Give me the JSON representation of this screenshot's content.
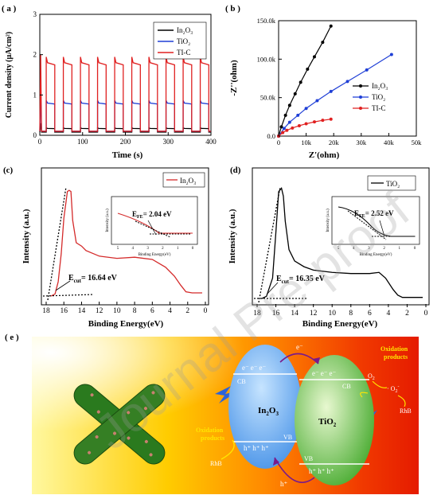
{
  "panels": {
    "a": {
      "label": "( a )",
      "xlabel": "Time (s)",
      "ylabel": "Current density (μA/cm²)",
      "xticks": [
        "0",
        "100",
        "200",
        "300",
        "400"
      ],
      "yticks": [
        "0",
        "1",
        "2",
        "3"
      ]
    },
    "b": {
      "label": "( b )",
      "xlabel": "Z'(ohm)",
      "ylabel": "-Z''(ohm)",
      "xticks": [
        "0",
        "10k",
        "20k",
        "30k",
        "40k",
        "50k"
      ],
      "yticks": [
        "0.0",
        "50.0k",
        "100.0k",
        "150.0k"
      ]
    },
    "c": {
      "label": "(c)",
      "xlabel": "Binding Energy(eV)",
      "ylabel": "Intensity (a.u.)",
      "xticks": [
        "18",
        "16",
        "14",
        "12",
        "10",
        "8",
        "6",
        "4",
        "2",
        "0"
      ],
      "legend": "In₂O₃",
      "annotation_cut": "E",
      "annotation_cut_sub": "cut",
      "annotation_cut_value": "= 16.64 eV",
      "inset_annotation": "E",
      "inset_annotation_sub": "FE",
      "inset_annotation_value": "= 2.04 eV",
      "inset_xlabel": "Binding Energy(eV)",
      "inset_ylabel": "Intensity (a.u.)",
      "inset_xticks": [
        "5",
        "4",
        "3",
        "2",
        "1",
        "0"
      ]
    },
    "d": {
      "label": "(d)",
      "xlabel": "Binding Energy(eV)",
      "ylabel": "Intensity (a.u.)",
      "xticks": [
        "18",
        "16",
        "14",
        "12",
        "10",
        "8",
        "6",
        "4",
        "2",
        "0"
      ],
      "legend": "TiO₂",
      "annotation_cut": "E",
      "annotation_cut_sub": "cut",
      "annotation_cut_value": "= 16.35 eV",
      "inset_annotation": "E",
      "inset_annotation_sub": "FE",
      "inset_annotation_value": "= 2.52 eV",
      "inset_xlabel": "Binding Energy(eV)",
      "inset_ylabel": "Intensity (a.u.)",
      "inset_xticks": [
        "5",
        "4",
        "3",
        "2",
        "1",
        "0"
      ]
    },
    "e": {
      "label": "( e )",
      "left_band": "In",
      "left_band_sub": "2",
      "left_band_rest": "O",
      "left_band_sub2": "3",
      "right_band": "TiO",
      "right_band_sub": "2",
      "cb": "CB",
      "vb": "VB",
      "electron": "e⁻",
      "hole": "h⁺",
      "oxidation_products": [
        "Oxidation",
        "products"
      ],
      "o2": "O",
      "o2_sub": "2",
      "o2_radical": "· O",
      "o2_radical_sub": "2",
      "o2_radical_sup": "-",
      "rhb": "RhB"
    }
  },
  "watermark": "Journal Pre-proof",
  "colors": {
    "in2o3_black": "#000000",
    "tio2_blue": "#1f3fd6",
    "tic_red": "#e02020",
    "xps_red": "#d42a2a"
  },
  "chart_data": [
    {
      "type": "line",
      "panel": "a",
      "xlabel": "Time (s)",
      "ylabel": "Current density (μA/cm²)",
      "xlim": [
        0,
        400
      ],
      "ylim": [
        0,
        3
      ],
      "on_off_period_s": 40,
      "series": [
        {
          "name": "In₂O₃",
          "light_on": 0.17,
          "dark": 0.08,
          "initial_spike": 0.3
        },
        {
          "name": "TiO₂",
          "light_on": 0.8,
          "dark": 0.1,
          "initial_spike": 1.1
        },
        {
          "name": "TI-C",
          "light_on": 1.8,
          "dark": 0.1,
          "initial_spike": 2.0
        }
      ]
    },
    {
      "type": "scatter",
      "panel": "b",
      "xlabel": "Z'(ohm)",
      "ylabel": "-Z''(ohm)",
      "xlim": [
        0,
        50000
      ],
      "ylim": [
        0,
        150000
      ],
      "series": [
        {
          "name": "In₂O₃",
          "x": [
            0,
            1000,
            2500,
            4000,
            6000,
            8000,
            10500,
            13000,
            16000,
            19000
          ],
          "y": [
            0,
            12000,
            27000,
            40000,
            55000,
            70000,
            87000,
            103000,
            122000,
            143000
          ]
        },
        {
          "name": "TiO₂",
          "x": [
            0,
            2000,
            4000,
            7000,
            10000,
            14000,
            19000,
            25000,
            32000,
            41000
          ],
          "y": [
            0,
            10000,
            18000,
            27000,
            36000,
            46000,
            58000,
            71000,
            86000,
            106000
          ]
        },
        {
          "name": "TI-C",
          "x": [
            0,
            1500,
            3000,
            5000,
            7500,
            10000,
            13000,
            16000,
            19000
          ],
          "y": [
            0,
            4500,
            7500,
            10500,
            13500,
            16000,
            18500,
            20500,
            22000
          ]
        }
      ]
    },
    {
      "type": "line",
      "panel": "c",
      "xlabel": "Binding Energy(eV)",
      "ylabel": "Intensity (a.u.)",
      "xlim": [
        18,
        0
      ],
      "series": [
        {
          "name": "In₂O₃",
          "x": [
            17.5,
            17,
            16.64,
            16.3,
            16,
            15.6,
            15.4,
            15.2,
            15.0,
            14.6,
            14.0,
            13.5,
            12,
            10,
            8,
            6,
            4.5,
            3.5,
            2.8,
            2.2,
            1.5
          ],
          "y": [
            0.02,
            0.04,
            0.15,
            0.4,
            0.72,
            0.96,
            0.97,
            0.96,
            0.7,
            0.5,
            0.47,
            0.43,
            0.38,
            0.36,
            0.37,
            0.35,
            0.28,
            0.2,
            0.12,
            0.06,
            0.05
          ]
        }
      ]
    },
    {
      "type": "line",
      "panel": "d",
      "xlabel": "Binding Energy(eV)",
      "ylabel": "Intensity (a.u.)",
      "xlim": [
        18,
        0
      ],
      "series": [
        {
          "name": "TiO₂",
          "x": [
            17.5,
            17,
            16.35,
            16,
            15.7,
            15.4,
            15.2,
            15.0,
            14.6,
            14.0,
            13.0,
            12,
            10,
            8,
            6,
            5,
            4.3,
            3.5,
            3.0,
            2.5,
            1.5
          ],
          "y": [
            0.02,
            0.04,
            0.2,
            0.6,
            0.96,
            0.99,
            0.92,
            0.7,
            0.45,
            0.35,
            0.3,
            0.27,
            0.25,
            0.24,
            0.24,
            0.25,
            0.2,
            0.1,
            0.05,
            0.03,
            0.03
          ]
        }
      ]
    }
  ]
}
